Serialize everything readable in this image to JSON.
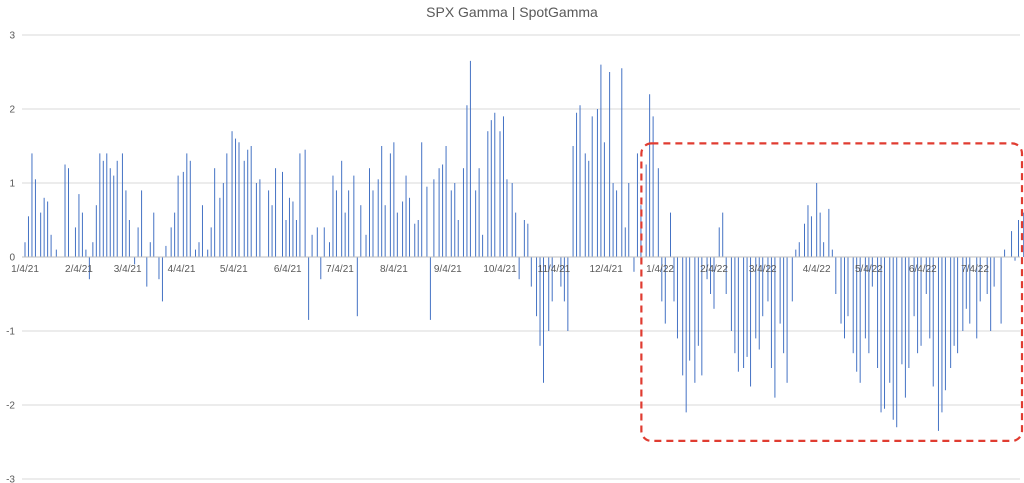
{
  "chart_data": {
    "type": "bar",
    "title": "SPX Gamma | SpotGamma",
    "xlabel": "",
    "ylabel": "",
    "ylim": [
      -3,
      3
    ],
    "y_ticks": [
      "3",
      "2",
      "1",
      "0",
      "-1",
      "-2",
      "-3"
    ],
    "x_tick_labels": [
      "1/4/21",
      "2/4/21",
      "3/4/21",
      "4/4/21",
      "5/4/21",
      "6/4/21",
      "7/4/21",
      "8/4/21",
      "9/4/21",
      "10/4/21",
      "11/4/21",
      "12/4/21",
      "1/4/22",
      "2/4/22",
      "3/4/22",
      "4/4/22",
      "5/4/22",
      "6/4/22",
      "7/4/22"
    ],
    "x_range": [
      "2021-01-04",
      "2022-08-01"
    ],
    "grid": true,
    "legend": "none",
    "bar_color": "#4472c4",
    "annotation": {
      "shape": "dashed-rectangle",
      "color": "#e03c31",
      "x_start": "2021-12-30",
      "x_end": "2022-08-01",
      "y_start": -2.35,
      "y_end": 1.4
    },
    "series": [
      {
        "values": [
          [
            "2021-01-04",
            0.2
          ],
          [
            "2021-01-06",
            0.55
          ],
          [
            "2021-01-08",
            1.4
          ],
          [
            "2021-01-10",
            1.05
          ],
          [
            "2021-01-13",
            0.6
          ],
          [
            "2021-01-15",
            0.8
          ],
          [
            "2021-01-17",
            0.75
          ],
          [
            "2021-01-19",
            0.3
          ],
          [
            "2021-01-22",
            0.1
          ],
          [
            "2021-01-25",
            0.0
          ],
          [
            "2021-01-27",
            1.25
          ],
          [
            "2021-01-29",
            1.2
          ],
          [
            "2021-02-02",
            0.4
          ],
          [
            "2021-02-04",
            0.85
          ],
          [
            "2021-02-06",
            0.6
          ],
          [
            "2021-02-08",
            0.1
          ],
          [
            "2021-02-10",
            -0.3
          ],
          [
            "2021-02-12",
            0.2
          ],
          [
            "2021-02-14",
            0.7
          ],
          [
            "2021-02-16",
            1.4
          ],
          [
            "2021-02-18",
            1.3
          ],
          [
            "2021-02-20",
            1.4
          ],
          [
            "2021-02-22",
            1.2
          ],
          [
            "2021-02-24",
            1.1
          ],
          [
            "2021-02-26",
            1.3
          ],
          [
            "2021-03-01",
            1.4
          ],
          [
            "2021-03-03",
            0.9
          ],
          [
            "2021-03-05",
            0.5
          ],
          [
            "2021-03-08",
            -0.1
          ],
          [
            "2021-03-10",
            0.4
          ],
          [
            "2021-03-12",
            0.9
          ],
          [
            "2021-03-15",
            -0.4
          ],
          [
            "2021-03-17",
            0.2
          ],
          [
            "2021-03-19",
            0.6
          ],
          [
            "2021-03-22",
            -0.3
          ],
          [
            "2021-03-24",
            -0.6
          ],
          [
            "2021-03-26",
            0.15
          ],
          [
            "2021-03-29",
            0.4
          ],
          [
            "2021-03-31",
            0.6
          ],
          [
            "2021-04-02",
            1.1
          ],
          [
            "2021-04-05",
            1.15
          ],
          [
            "2021-04-07",
            1.4
          ],
          [
            "2021-04-09",
            1.3
          ],
          [
            "2021-04-12",
            0.1
          ],
          [
            "2021-04-14",
            0.2
          ],
          [
            "2021-04-16",
            0.7
          ],
          [
            "2021-04-19",
            0.1
          ],
          [
            "2021-04-21",
            0.4
          ],
          [
            "2021-04-23",
            1.2
          ],
          [
            "2021-04-26",
            0.8
          ],
          [
            "2021-04-28",
            1.0
          ],
          [
            "2021-04-30",
            1.4
          ],
          [
            "2021-05-03",
            1.7
          ],
          [
            "2021-05-05",
            1.6
          ],
          [
            "2021-05-07",
            1.55
          ],
          [
            "2021-05-10",
            1.3
          ],
          [
            "2021-05-12",
            1.45
          ],
          [
            "2021-05-14",
            1.5
          ],
          [
            "2021-05-17",
            1.0
          ],
          [
            "2021-05-19",
            1.05
          ],
          [
            "2021-05-21",
            0.0
          ],
          [
            "2021-05-24",
            0.9
          ],
          [
            "2021-05-26",
            0.7
          ],
          [
            "2021-05-28",
            1.2
          ],
          [
            "2021-06-01",
            1.15
          ],
          [
            "2021-06-03",
            0.5
          ],
          [
            "2021-06-05",
            0.8
          ],
          [
            "2021-06-07",
            0.75
          ],
          [
            "2021-06-09",
            0.5
          ],
          [
            "2021-06-11",
            1.4
          ],
          [
            "2021-06-14",
            1.45
          ],
          [
            "2021-06-16",
            -0.85
          ],
          [
            "2021-06-18",
            0.3
          ],
          [
            "2021-06-21",
            0.4
          ],
          [
            "2021-06-23",
            -0.3
          ],
          [
            "2021-06-25",
            0.4
          ],
          [
            "2021-06-28",
            0.2
          ],
          [
            "2021-06-30",
            1.1
          ],
          [
            "2021-07-02",
            0.9
          ],
          [
            "2021-07-05",
            1.3
          ],
          [
            "2021-07-07",
            0.6
          ],
          [
            "2021-07-09",
            0.9
          ],
          [
            "2021-07-12",
            1.1
          ],
          [
            "2021-07-14",
            -0.8
          ],
          [
            "2021-07-16",
            0.7
          ],
          [
            "2021-07-19",
            0.3
          ],
          [
            "2021-07-21",
            1.2
          ],
          [
            "2021-07-23",
            0.9
          ],
          [
            "2021-07-26",
            1.05
          ],
          [
            "2021-07-28",
            1.5
          ],
          [
            "2021-07-30",
            0.7
          ],
          [
            "2021-08-02",
            1.4
          ],
          [
            "2021-08-04",
            1.55
          ],
          [
            "2021-08-06",
            0.6
          ],
          [
            "2021-08-09",
            0.75
          ],
          [
            "2021-08-11",
            1.1
          ],
          [
            "2021-08-13",
            0.8
          ],
          [
            "2021-08-16",
            0.45
          ],
          [
            "2021-08-18",
            0.5
          ],
          [
            "2021-08-20",
            1.55
          ],
          [
            "2021-08-23",
            0.95
          ],
          [
            "2021-08-25",
            -0.85
          ],
          [
            "2021-08-27",
            1.05
          ],
          [
            "2021-08-30",
            1.2
          ],
          [
            "2021-09-01",
            1.25
          ],
          [
            "2021-09-03",
            1.5
          ],
          [
            "2021-09-06",
            0.9
          ],
          [
            "2021-09-08",
            1.0
          ],
          [
            "2021-09-10",
            0.5
          ],
          [
            "2021-09-13",
            1.2
          ],
          [
            "2021-09-15",
            2.05
          ],
          [
            "2021-09-17",
            2.65
          ],
          [
            "2021-09-20",
            0.9
          ],
          [
            "2021-09-22",
            1.2
          ],
          [
            "2021-09-24",
            0.3
          ],
          [
            "2021-09-27",
            1.7
          ],
          [
            "2021-09-29",
            1.85
          ],
          [
            "2021-10-01",
            1.95
          ],
          [
            "2021-10-04",
            1.7
          ],
          [
            "2021-10-06",
            1.9
          ],
          [
            "2021-10-08",
            1.05
          ],
          [
            "2021-10-11",
            1.0
          ],
          [
            "2021-10-13",
            0.6
          ],
          [
            "2021-10-15",
            -0.3
          ],
          [
            "2021-10-18",
            0.5
          ],
          [
            "2021-10-20",
            0.45
          ],
          [
            "2021-10-22",
            -0.4
          ],
          [
            "2021-10-25",
            -0.8
          ],
          [
            "2021-10-27",
            -1.2
          ],
          [
            "2021-10-29",
            -1.7
          ],
          [
            "2021-11-01",
            -1.0
          ],
          [
            "2021-11-03",
            -0.6
          ],
          [
            "2021-11-05",
            0.0
          ],
          [
            "2021-11-08",
            -0.4
          ],
          [
            "2021-11-10",
            -0.6
          ],
          [
            "2021-11-12",
            -1.0
          ],
          [
            "2021-11-15",
            1.5
          ],
          [
            "2021-11-17",
            1.95
          ],
          [
            "2021-11-19",
            2.05
          ],
          [
            "2021-11-22",
            1.4
          ],
          [
            "2021-11-24",
            1.3
          ],
          [
            "2021-11-26",
            1.9
          ],
          [
            "2021-11-29",
            2.0
          ],
          [
            "2021-12-01",
            2.6
          ],
          [
            "2021-12-03",
            1.55
          ],
          [
            "2021-12-06",
            2.5
          ],
          [
            "2021-12-08",
            1.0
          ],
          [
            "2021-12-10",
            0.9
          ],
          [
            "2021-12-13",
            2.55
          ],
          [
            "2021-12-15",
            0.4
          ],
          [
            "2021-12-17",
            1.0
          ],
          [
            "2021-12-20",
            -0.2
          ],
          [
            "2021-12-22",
            1.4
          ],
          [
            "2021-12-24",
            0.7
          ],
          [
            "2021-12-27",
            1.25
          ],
          [
            "2021-12-29",
            2.2
          ],
          [
            "2021-12-31",
            1.9
          ],
          [
            "2022-01-03",
            1.2
          ],
          [
            "2022-01-05",
            -0.6
          ],
          [
            "2022-01-07",
            -0.9
          ],
          [
            "2022-01-10",
            0.6
          ],
          [
            "2022-01-12",
            -0.6
          ],
          [
            "2022-01-14",
            -1.1
          ],
          [
            "2022-01-17",
            -1.6
          ],
          [
            "2022-01-19",
            -2.1
          ],
          [
            "2022-01-21",
            -1.4
          ],
          [
            "2022-01-24",
            -1.7
          ],
          [
            "2022-01-26",
            -1.2
          ],
          [
            "2022-01-28",
            -1.6
          ],
          [
            "2022-01-31",
            -0.3
          ],
          [
            "2022-02-02",
            -0.5
          ],
          [
            "2022-02-04",
            -0.7
          ],
          [
            "2022-02-07",
            0.4
          ],
          [
            "2022-02-09",
            0.6
          ],
          [
            "2022-02-11",
            -0.5
          ],
          [
            "2022-02-14",
            -1.0
          ],
          [
            "2022-02-16",
            -1.3
          ],
          [
            "2022-02-18",
            -1.55
          ],
          [
            "2022-02-21",
            -1.5
          ],
          [
            "2022-02-23",
            -1.35
          ],
          [
            "2022-02-25",
            -1.75
          ],
          [
            "2022-02-28",
            -1.1
          ],
          [
            "2022-03-02",
            -1.25
          ],
          [
            "2022-03-04",
            -0.8
          ],
          [
            "2022-03-07",
            -0.6
          ],
          [
            "2022-03-09",
            -1.5
          ],
          [
            "2022-03-11",
            -1.9
          ],
          [
            "2022-03-14",
            -0.9
          ],
          [
            "2022-03-16",
            -1.3
          ],
          [
            "2022-03-18",
            -1.7
          ],
          [
            "2022-03-21",
            -0.6
          ],
          [
            "2022-03-23",
            0.1
          ],
          [
            "2022-03-25",
            0.2
          ],
          [
            "2022-03-28",
            0.45
          ],
          [
            "2022-03-30",
            0.7
          ],
          [
            "2022-04-01",
            0.55
          ],
          [
            "2022-04-04",
            1.0
          ],
          [
            "2022-04-06",
            0.6
          ],
          [
            "2022-04-08",
            0.2
          ],
          [
            "2022-04-11",
            0.65
          ],
          [
            "2022-04-13",
            0.1
          ],
          [
            "2022-04-15",
            -0.5
          ],
          [
            "2022-04-18",
            -0.9
          ],
          [
            "2022-04-20",
            -1.1
          ],
          [
            "2022-04-22",
            -0.8
          ],
          [
            "2022-04-25",
            -1.3
          ],
          [
            "2022-04-27",
            -1.55
          ],
          [
            "2022-04-29",
            -1.7
          ],
          [
            "2022-05-02",
            -1.1
          ],
          [
            "2022-05-04",
            -1.3
          ],
          [
            "2022-05-06",
            -0.4
          ],
          [
            "2022-05-09",
            -1.5
          ],
          [
            "2022-05-11",
            -2.1
          ],
          [
            "2022-05-13",
            -2.05
          ],
          [
            "2022-05-16",
            -1.7
          ],
          [
            "2022-05-18",
            -2.2
          ],
          [
            "2022-05-20",
            -2.3
          ],
          [
            "2022-05-23",
            -1.45
          ],
          [
            "2022-05-25",
            -1.9
          ],
          [
            "2022-05-27",
            -1.5
          ],
          [
            "2022-05-30",
            -0.8
          ],
          [
            "2022-06-01",
            -1.3
          ],
          [
            "2022-06-03",
            -1.2
          ],
          [
            "2022-06-06",
            -0.5
          ],
          [
            "2022-06-08",
            -1.1
          ],
          [
            "2022-06-10",
            -1.75
          ],
          [
            "2022-06-13",
            -2.35
          ],
          [
            "2022-06-15",
            -2.1
          ],
          [
            "2022-06-17",
            -1.8
          ],
          [
            "2022-06-20",
            -1.5
          ],
          [
            "2022-06-22",
            -1.2
          ],
          [
            "2022-06-24",
            -1.3
          ],
          [
            "2022-06-27",
            -1.0
          ],
          [
            "2022-06-29",
            -0.7
          ],
          [
            "2022-07-01",
            -0.9
          ],
          [
            "2022-07-05",
            -1.1
          ],
          [
            "2022-07-07",
            -0.6
          ],
          [
            "2022-07-11",
            -0.5
          ],
          [
            "2022-07-13",
            -1.0
          ],
          [
            "2022-07-15",
            -0.4
          ],
          [
            "2022-07-19",
            -0.9
          ],
          [
            "2022-07-21",
            0.1
          ],
          [
            "2022-07-25",
            0.35
          ],
          [
            "2022-07-27",
            -0.05
          ],
          [
            "2022-07-29",
            0.5
          ],
          [
            "2022-08-01",
            0.6
          ]
        ]
      }
    ]
  }
}
